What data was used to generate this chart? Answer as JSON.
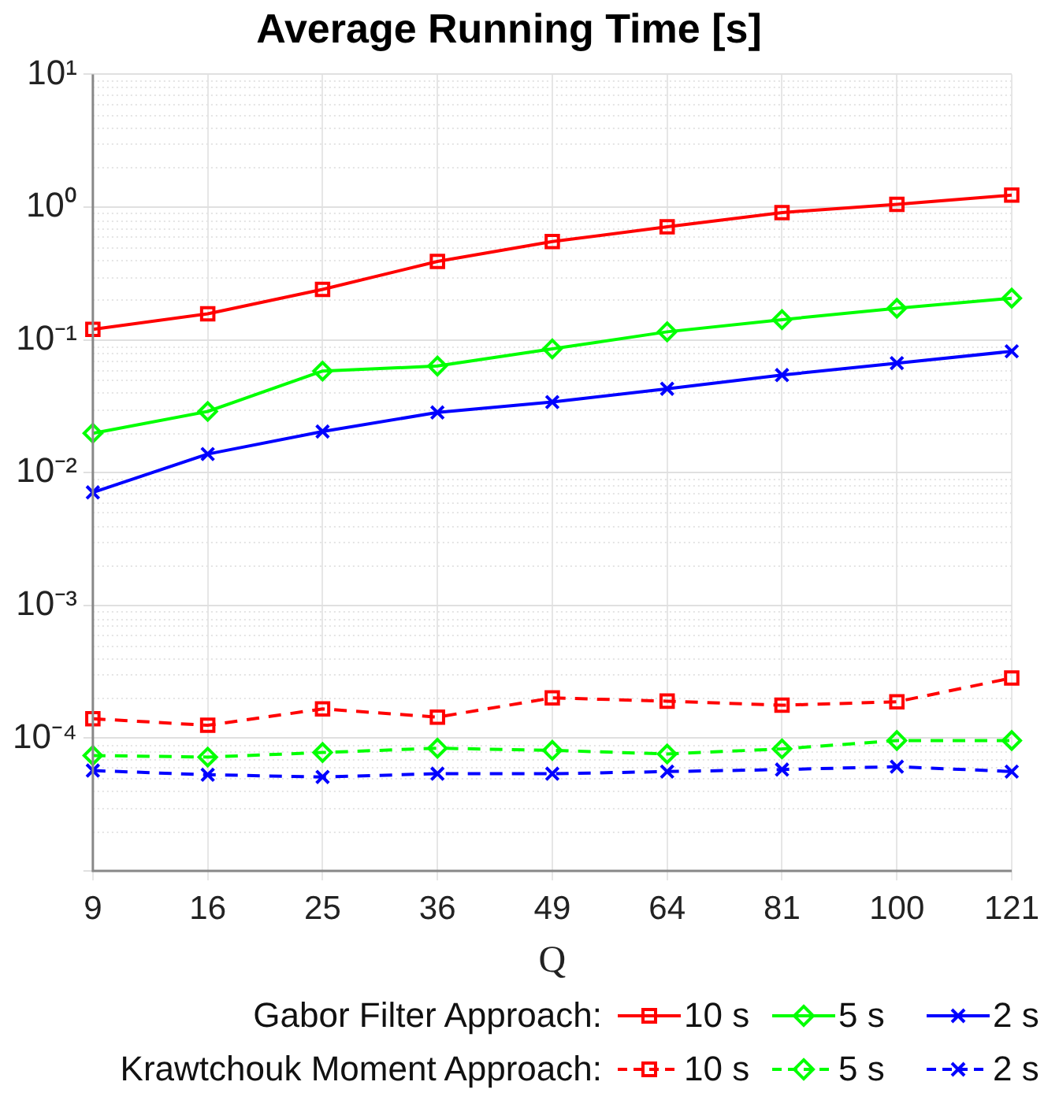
{
  "chart_data": {
    "type": "line",
    "title": "Average Running Time [s]",
    "xlabel": "Q",
    "categories": [
      "9",
      "16",
      "25",
      "36",
      "49",
      "64",
      "81",
      "100",
      "121"
    ],
    "series": [
      {
        "name": "10 s",
        "color": "#ff0000",
        "marker": "square",
        "line_style": "solid",
        "values": [
          0.12,
          0.157,
          0.24,
          0.39,
          0.55,
          0.71,
          0.91,
          1.05,
          1.23
        ]
      },
      {
        "name": "5 s",
        "color": "#00ff00",
        "marker": "diamond",
        "line_style": "solid",
        "values": [
          0.0198,
          0.0289,
          0.0582,
          0.0635,
          0.0855,
          0.115,
          0.142,
          0.173,
          0.206
        ]
      },
      {
        "name": "2 s",
        "color": "#0000ff",
        "marker": "cross",
        "line_style": "solid",
        "values": [
          0.0071,
          0.0138,
          0.0204,
          0.0284,
          0.034,
          0.0428,
          0.0543,
          0.0668,
          0.082
        ]
      },
      {
        "name": "10 s",
        "color": "#ff0000",
        "marker": "square",
        "line_style": "dashed",
        "values": [
          0.00014,
          0.000125,
          0.000166,
          0.000144,
          0.000201,
          0.00019,
          0.000177,
          0.000188,
          0.000284
        ]
      },
      {
        "name": "5 s",
        "color": "#00ff00",
        "marker": "diamond",
        "line_style": "dashed",
        "values": [
          7.4e-05,
          7.2e-05,
          7.8e-05,
          8.4e-05,
          8.1e-05,
          7.6e-05,
          8.3e-05,
          9.6e-05,
          9.6e-05
        ]
      },
      {
        "name": "2 s",
        "color": "#0000ff",
        "marker": "cross",
        "line_style": "dashed",
        "values": [
          5.7e-05,
          5.3e-05,
          5.1e-05,
          5.4e-05,
          5.4e-05,
          5.6e-05,
          5.8e-05,
          6.1e-05,
          5.6e-05
        ]
      }
    ],
    "log": "y",
    "ylim": [
      1e-05,
      10
    ],
    "yticks": [
      {
        "value": 1e-05,
        "label": null
      },
      {
        "value": 0.0001,
        "label": "10⁻⁴"
      },
      {
        "value": 0.001,
        "label": "10⁻³"
      },
      {
        "value": 0.01,
        "label": "10⁻²"
      },
      {
        "value": 0.1,
        "label": "10⁻¹"
      },
      {
        "value": 1,
        "label": "10⁰"
      },
      {
        "value": 10,
        "label": "10¹"
      }
    ],
    "grid": true,
    "legend": "bottom",
    "annotations": [
      "Gabor Filter Approach:",
      "Krawtchouk Moment Approach:"
    ]
  }
}
